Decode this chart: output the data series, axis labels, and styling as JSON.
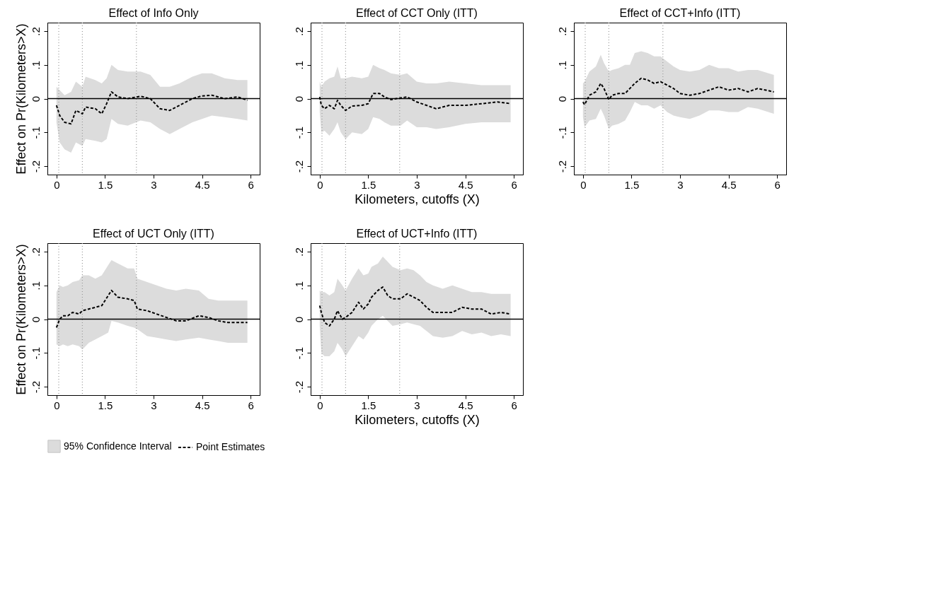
{
  "chart_data": [
    {
      "type": "line",
      "title": "Effect of Info Only",
      "ylabel": "Effect on Pr(Kilometers>X)",
      "legend": "bottom",
      "xlim": [
        -0.28,
        6.28
      ],
      "ylim": [
        -0.225,
        0.225
      ],
      "xticks": [
        0,
        1.5,
        3,
        4.5,
        6
      ],
      "yticks": [
        {
          "value": -0.2,
          "label": "-.2"
        },
        {
          "value": -0.1,
          "label": "-.1"
        },
        {
          "value": 0,
          "label": "0"
        },
        {
          "value": 0.1,
          "label": ".1"
        },
        {
          "value": 0.2,
          "label": ".2"
        }
      ],
      "x": [
        0,
        0.1,
        0.25,
        0.45,
        0.6,
        0.8,
        0.9,
        1.2,
        1.4,
        1.55,
        1.7,
        1.9,
        2.2,
        2.6,
        2.9,
        3.2,
        3.5,
        3.8,
        4.2,
        4.5,
        4.8,
        5.2,
        5.6,
        5.9
      ],
      "series": [
        {
          "name": "Point Estimates",
          "type": "line",
          "color": "#000000",
          "line_style": "dashed",
          "values": [
            -0.02,
            -0.05,
            -0.07,
            -0.075,
            -0.035,
            -0.045,
            -0.025,
            -0.03,
            -0.045,
            -0.015,
            0.02,
            0.005,
            0,
            0.007,
            0,
            -0.03,
            -0.035,
            -0.02,
            0,
            0.008,
            0.01,
            0,
            0.005,
            -0.005
          ],
          "lower": [
            -0.07,
            -0.13,
            -0.15,
            -0.16,
            -0.13,
            -0.14,
            -0.12,
            -0.125,
            -0.13,
            -0.12,
            -0.06,
            -0.075,
            -0.08,
            -0.065,
            -0.07,
            -0.09,
            -0.105,
            -0.09,
            -0.07,
            -0.06,
            -0.05,
            -0.055,
            -0.06,
            -0.065
          ],
          "upper": [
            0.035,
            0.025,
            0.01,
            0.02,
            0.05,
            0.035,
            0.065,
            0.055,
            0.045,
            0.06,
            0.1,
            0.085,
            0.08,
            0.08,
            0.07,
            0.035,
            0.035,
            0.045,
            0.065,
            0.075,
            0.075,
            0.06,
            0.055,
            0.055
          ]
        }
      ],
      "annotations": [
        "95% Confidence Interval"
      ],
      "ref_lines": [
        {
          "axis": "x",
          "value": 0.07,
          "color": "#999999",
          "line_style": "dotted"
        },
        {
          "axis": "x",
          "value": 0.8,
          "color": "#999999",
          "line_style": "dotted"
        },
        {
          "axis": "x",
          "value": 2.47,
          "color": "#999999",
          "line_style": "dotted"
        },
        {
          "axis": "y",
          "value": 0,
          "color": "#000000",
          "line_style": "solid"
        }
      ]
    },
    {
      "type": "line",
      "title": "Effect of CCT Only (ITT)",
      "xlabel": "Kilometers, cutoffs (X)",
      "legend": "bottom",
      "xlim": [
        -0.28,
        6.28
      ],
      "ylim": [
        -0.225,
        0.225
      ],
      "xticks": [
        0,
        1.5,
        3,
        4.5,
        6
      ],
      "yticks": [
        {
          "value": -0.2,
          "label": "-.2"
        },
        {
          "value": -0.1,
          "label": "-.1"
        },
        {
          "value": 0,
          "label": "0"
        },
        {
          "value": 0.1,
          "label": ".1"
        },
        {
          "value": 0.2,
          "label": ".2"
        }
      ],
      "x": [
        0,
        0.05,
        0.15,
        0.3,
        0.45,
        0.55,
        0.65,
        0.8,
        1.0,
        1.3,
        1.5,
        1.65,
        1.85,
        2.0,
        2.2,
        2.5,
        2.7,
        3.0,
        3.3,
        3.6,
        4.0,
        4.5,
        5.0,
        5.5,
        5.9
      ],
      "series": [
        {
          "name": "Point Estimates",
          "type": "line",
          "color": "#000000",
          "line_style": "dashed",
          "values": [
            0.005,
            -0.02,
            -0.03,
            -0.02,
            -0.03,
            -0.005,
            -0.02,
            -0.035,
            -0.022,
            -0.02,
            -0.015,
            0.015,
            0.015,
            0.005,
            -0.003,
            0.002,
            0.005,
            -0.01,
            -0.02,
            -0.03,
            -0.02,
            -0.02,
            -0.015,
            -0.01,
            -0.015
          ],
          "lower": [
            -0.04,
            -0.1,
            -0.095,
            -0.11,
            -0.09,
            -0.07,
            -0.1,
            -0.12,
            -0.1,
            -0.105,
            -0.09,
            -0.055,
            -0.06,
            -0.07,
            -0.08,
            -0.08,
            -0.065,
            -0.085,
            -0.085,
            -0.09,
            -0.085,
            -0.075,
            -0.07,
            -0.07,
            -0.07
          ],
          "upper": [
            0.05,
            0.035,
            0.05,
            0.06,
            0.065,
            0.095,
            0.06,
            0.06,
            0.065,
            0.06,
            0.065,
            0.1,
            0.09,
            0.085,
            0.075,
            0.07,
            0.075,
            0.05,
            0.045,
            0.045,
            0.05,
            0.045,
            0.04,
            0.04,
            0.04
          ]
        }
      ],
      "ref_lines": [
        {
          "axis": "x",
          "value": 0.07,
          "color": "#999999",
          "line_style": "dotted"
        },
        {
          "axis": "x",
          "value": 0.8,
          "color": "#999999",
          "line_style": "dotted"
        },
        {
          "axis": "x",
          "value": 2.47,
          "color": "#999999",
          "line_style": "dotted"
        },
        {
          "axis": "y",
          "value": 0,
          "color": "#000000",
          "line_style": "solid"
        }
      ]
    },
    {
      "type": "line",
      "title": "Effect of CCT+Info (ITT)",
      "legend": "bottom",
      "xlim": [
        -0.28,
        6.28
      ],
      "ylim": [
        -0.225,
        0.225
      ],
      "xticks": [
        0,
        1.5,
        3,
        4.5,
        6
      ],
      "yticks": [
        {
          "value": -0.2,
          "label": "-.2"
        },
        {
          "value": -0.1,
          "label": "-.1"
        },
        {
          "value": 0,
          "label": "0"
        },
        {
          "value": 0.1,
          "label": ".1"
        },
        {
          "value": 0.2,
          "label": ".2"
        }
      ],
      "x": [
        0,
        0.05,
        0.2,
        0.4,
        0.55,
        0.65,
        0.8,
        0.9,
        1.1,
        1.3,
        1.45,
        1.6,
        1.8,
        2.0,
        2.2,
        2.4,
        2.6,
        2.8,
        3.0,
        3.3,
        3.6,
        3.9,
        4.2,
        4.5,
        4.8,
        5.1,
        5.4,
        5.9
      ],
      "series": [
        {
          "name": "Point Estimates",
          "type": "line",
          "color": "#000000",
          "line_style": "dashed",
          "values": [
            -0.01,
            -0.018,
            0.01,
            0.02,
            0.045,
            0.03,
            -0.003,
            0.01,
            0.015,
            0.015,
            0.03,
            0.045,
            0.06,
            0.055,
            0.045,
            0.05,
            0.04,
            0.03,
            0.015,
            0.01,
            0.015,
            0.025,
            0.035,
            0.025,
            0.03,
            0.02,
            0.03,
            0.02
          ],
          "lower": [
            -0.055,
            -0.085,
            -0.065,
            -0.06,
            -0.03,
            -0.05,
            -0.09,
            -0.08,
            -0.075,
            -0.065,
            -0.04,
            -0.01,
            -0.02,
            -0.02,
            -0.03,
            -0.02,
            -0.04,
            -0.05,
            -0.055,
            -0.06,
            -0.05,
            -0.035,
            -0.035,
            -0.04,
            -0.04,
            -0.025,
            -0.03,
            -0.045
          ],
          "upper": [
            0.045,
            0.05,
            0.08,
            0.095,
            0.13,
            0.105,
            0.08,
            0.085,
            0.09,
            0.1,
            0.1,
            0.135,
            0.14,
            0.135,
            0.125,
            0.125,
            0.11,
            0.095,
            0.085,
            0.08,
            0.085,
            0.1,
            0.09,
            0.09,
            0.08,
            0.085,
            0.085,
            0.07
          ]
        }
      ],
      "ref_lines": [
        {
          "axis": "x",
          "value": 0.07,
          "color": "#999999",
          "line_style": "dotted"
        },
        {
          "axis": "x",
          "value": 0.8,
          "color": "#999999",
          "line_style": "dotted"
        },
        {
          "axis": "x",
          "value": 2.47,
          "color": "#999999",
          "line_style": "dotted"
        },
        {
          "axis": "y",
          "value": 0,
          "color": "#000000",
          "line_style": "solid"
        }
      ]
    },
    {
      "type": "line",
      "title": "Effect of UCT Only (ITT)",
      "ylabel": "Effect on Pr(Kilometers>X)",
      "legend": "bottom",
      "xlim": [
        -0.28,
        6.28
      ],
      "ylim": [
        -0.225,
        0.225
      ],
      "xticks": [
        0,
        1.5,
        3,
        4.5,
        6
      ],
      "yticks": [
        {
          "value": -0.2,
          "label": "-.2"
        },
        {
          "value": -0.1,
          "label": "-.1"
        },
        {
          "value": 0,
          "label": "0"
        },
        {
          "value": 0.1,
          "label": ".1"
        },
        {
          "value": 0.2,
          "label": ".2"
        }
      ],
      "x": [
        0,
        0.1,
        0.2,
        0.35,
        0.5,
        0.7,
        0.8,
        1.0,
        1.2,
        1.4,
        1.6,
        1.7,
        1.9,
        2.2,
        2.4,
        2.5,
        2.8,
        3.1,
        3.4,
        3.7,
        4.0,
        4.4,
        4.7,
        5.0,
        5.3,
        5.6,
        5.9
      ],
      "series": [
        {
          "name": "Point Estimates",
          "type": "line",
          "color": "#000000",
          "line_style": "dashed",
          "values": [
            -0.025,
            0,
            0.01,
            0.01,
            0.02,
            0.015,
            0.025,
            0.03,
            0.035,
            0.04,
            0.07,
            0.085,
            0.065,
            0.06,
            0.055,
            0.03,
            0.025,
            0.015,
            0.005,
            -0.005,
            -0.005,
            0.01,
            0.005,
            -0.005,
            -0.01,
            -0.01,
            -0.01
          ],
          "lower": [
            -0.075,
            -0.08,
            -0.075,
            -0.08,
            -0.075,
            -0.08,
            -0.09,
            -0.07,
            -0.06,
            -0.05,
            -0.04,
            -0.005,
            -0.01,
            -0.02,
            -0.025,
            -0.03,
            -0.05,
            -0.055,
            -0.06,
            -0.065,
            -0.06,
            -0.055,
            -0.06,
            -0.065,
            -0.07,
            -0.07,
            -0.07
          ],
          "upper": [
            0.08,
            0.1,
            0.095,
            0.1,
            0.11,
            0.115,
            0.13,
            0.13,
            0.12,
            0.13,
            0.16,
            0.175,
            0.165,
            0.15,
            0.15,
            0.12,
            0.11,
            0.1,
            0.09,
            0.085,
            0.09,
            0.085,
            0.06,
            0.055,
            0.055,
            0.055,
            0.055
          ]
        }
      ],
      "ref_lines": [
        {
          "axis": "x",
          "value": 0.07,
          "color": "#999999",
          "line_style": "dotted"
        },
        {
          "axis": "x",
          "value": 0.8,
          "color": "#999999",
          "line_style": "dotted"
        },
        {
          "axis": "x",
          "value": 2.47,
          "color": "#999999",
          "line_style": "dotted"
        },
        {
          "axis": "y",
          "value": 0,
          "color": "#000000",
          "line_style": "solid"
        }
      ]
    },
    {
      "type": "line",
      "title": "Effect of UCT+Info (ITT)",
      "xlabel": "Kilometers, cutoffs (X)",
      "legend": "bottom",
      "xlim": [
        -0.28,
        6.28
      ],
      "ylim": [
        -0.225,
        0.225
      ],
      "xticks": [
        0,
        1.5,
        3,
        4.5,
        6
      ],
      "yticks": [
        {
          "value": -0.2,
          "label": "-.2"
        },
        {
          "value": -0.1,
          "label": "-.1"
        },
        {
          "value": 0,
          "label": "0"
        },
        {
          "value": 0.1,
          "label": ".1"
        },
        {
          "value": 0.2,
          "label": ".2"
        }
      ],
      "x": [
        0,
        0.05,
        0.15,
        0.3,
        0.45,
        0.55,
        0.7,
        0.8,
        1.0,
        1.2,
        1.35,
        1.5,
        1.6,
        1.8,
        1.95,
        2.1,
        2.25,
        2.5,
        2.7,
        2.9,
        3.1,
        3.3,
        3.5,
        3.8,
        4.1,
        4.4,
        4.7,
        5.0,
        5.3,
        5.6,
        5.9
      ],
      "series": [
        {
          "name": "Point Estimates",
          "type": "line",
          "color": "#000000",
          "line_style": "dashed",
          "values": [
            0.04,
            0.02,
            -0.01,
            -0.02,
            0,
            0.025,
            0,
            0.005,
            0.02,
            0.05,
            0.03,
            0.045,
            0.065,
            0.085,
            0.095,
            0.07,
            0.06,
            0.06,
            0.075,
            0.065,
            0.055,
            0.035,
            0.02,
            0.02,
            0.02,
            0.035,
            0.03,
            0.03,
            0.015,
            0.02,
            0.015
          ],
          "lower": [
            -0.02,
            -0.1,
            -0.11,
            -0.11,
            -0.095,
            -0.07,
            -0.09,
            -0.11,
            -0.08,
            -0.05,
            -0.06,
            -0.04,
            -0.02,
            0,
            0.01,
            -0.005,
            -0.02,
            -0.015,
            -0.01,
            -0.015,
            -0.02,
            -0.035,
            -0.05,
            -0.055,
            -0.05,
            -0.035,
            -0.045,
            -0.04,
            -0.05,
            -0.045,
            -0.05
          ],
          "upper": [
            0.085,
            0.08,
            0.08,
            0.07,
            0.08,
            0.12,
            0.1,
            0.085,
            0.12,
            0.15,
            0.13,
            0.135,
            0.155,
            0.165,
            0.185,
            0.17,
            0.155,
            0.145,
            0.15,
            0.145,
            0.13,
            0.11,
            0.1,
            0.09,
            0.1,
            0.09,
            0.08,
            0.08,
            0.075,
            0.075,
            0.075
          ]
        }
      ],
      "ref_lines": [
        {
          "axis": "x",
          "value": 0.07,
          "color": "#999999",
          "line_style": "dotted"
        },
        {
          "axis": "x",
          "value": 0.8,
          "color": "#999999",
          "line_style": "dotted"
        },
        {
          "axis": "x",
          "value": 2.47,
          "color": "#999999",
          "line_style": "dotted"
        },
        {
          "axis": "y",
          "value": 0,
          "color": "#000000",
          "line_style": "solid"
        }
      ]
    }
  ]
}
